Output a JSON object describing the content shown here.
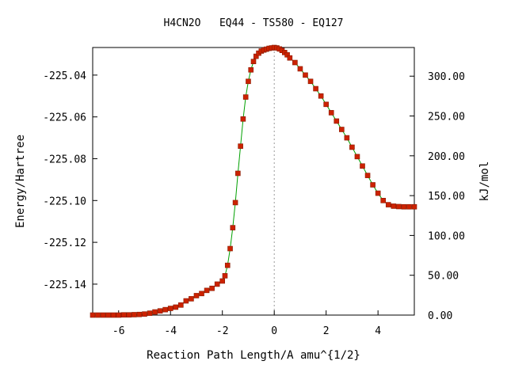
{
  "chart_data": {
    "type": "line",
    "title": "H4CN2O   EQ44 - TS580 - EQ127",
    "xlabel": "Reaction Path Length/A amu^{1/2}",
    "ylabel": "Energy/Hartree",
    "y2label": "kJ/mol",
    "xlim": [
      -7.0,
      5.4
    ],
    "ylim": [
      -225.1548,
      -225.0268
    ],
    "y2lim": [
      0,
      336
    ],
    "x_ticks": [
      "-6",
      "-4",
      "-2",
      "0",
      "2",
      "4"
    ],
    "y_ticks": [
      "-225.04",
      "-225.06",
      "-225.08",
      "-225.10",
      "-225.12",
      "-225.14"
    ],
    "y2_ticks": [
      "0.00",
      "50.00",
      "100.00",
      "150.00",
      "200.00",
      "250.00",
      "300.00"
    ],
    "ts_marker_x": 0,
    "grid": false,
    "line_color": "#00a000",
    "marker_color": "#cc2200",
    "series": [
      {
        "points": [
          [
            -7.0,
            -225.1548
          ],
          [
            -6.8,
            -225.1548
          ],
          [
            -6.6,
            -225.1548
          ],
          [
            -6.4,
            -225.1548
          ],
          [
            -6.2,
            -225.1548
          ],
          [
            -6.0,
            -225.1548
          ],
          [
            -5.8,
            -225.1547
          ],
          [
            -5.6,
            -225.1547
          ],
          [
            -5.4,
            -225.1546
          ],
          [
            -5.2,
            -225.1545
          ],
          [
            -5.0,
            -225.1543
          ],
          [
            -4.8,
            -225.1539
          ],
          [
            -4.6,
            -225.1533
          ],
          [
            -4.4,
            -225.1528
          ],
          [
            -4.2,
            -225.1522
          ],
          [
            -4.0,
            -225.1516
          ],
          [
            -3.8,
            -225.151
          ],
          [
            -3.6,
            -225.15
          ],
          [
            -3.4,
            -225.148
          ],
          [
            -3.2,
            -225.147
          ],
          [
            -3.0,
            -225.1455
          ],
          [
            -2.8,
            -225.1445
          ],
          [
            -2.6,
            -225.143
          ],
          [
            -2.4,
            -225.142
          ],
          [
            -2.2,
            -225.14
          ],
          [
            -2.0,
            -225.1385
          ],
          [
            -1.9,
            -225.136
          ],
          [
            -1.8,
            -225.131
          ],
          [
            -1.7,
            -225.123
          ],
          [
            -1.6,
            -225.113
          ],
          [
            -1.5,
            -225.101
          ],
          [
            -1.4,
            -225.087
          ],
          [
            -1.3,
            -225.074
          ],
          [
            -1.2,
            -225.061
          ],
          [
            -1.1,
            -225.0505
          ],
          [
            -1.0,
            -225.043
          ],
          [
            -0.9,
            -225.0375
          ],
          [
            -0.8,
            -225.0335
          ],
          [
            -0.7,
            -225.031
          ],
          [
            -0.6,
            -225.0295
          ],
          [
            -0.5,
            -225.0285
          ],
          [
            -0.4,
            -225.028
          ],
          [
            -0.3,
            -225.0276
          ],
          [
            -0.2,
            -225.0272
          ],
          [
            -0.1,
            -225.027
          ],
          [
            0.0,
            -225.0268
          ],
          [
            0.1,
            -225.027
          ],
          [
            0.2,
            -225.0275
          ],
          [
            0.3,
            -225.0282
          ],
          [
            0.4,
            -225.0292
          ],
          [
            0.5,
            -225.0303
          ],
          [
            0.6,
            -225.0318
          ],
          [
            0.8,
            -225.034
          ],
          [
            1.0,
            -225.037
          ],
          [
            1.2,
            -225.04
          ],
          [
            1.4,
            -225.043
          ],
          [
            1.6,
            -225.0465
          ],
          [
            1.8,
            -225.05
          ],
          [
            2.0,
            -225.054
          ],
          [
            2.2,
            -225.058
          ],
          [
            2.4,
            -225.062
          ],
          [
            2.6,
            -225.066
          ],
          [
            2.8,
            -225.07
          ],
          [
            3.0,
            -225.0745
          ],
          [
            3.2,
            -225.079
          ],
          [
            3.4,
            -225.0835
          ],
          [
            3.6,
            -225.088
          ],
          [
            3.8,
            -225.0925
          ],
          [
            4.0,
            -225.0965
          ],
          [
            4.2,
            -225.1
          ],
          [
            4.4,
            -225.102
          ],
          [
            4.6,
            -225.1027
          ],
          [
            4.8,
            -225.1029
          ],
          [
            5.0,
            -225.103
          ],
          [
            5.2,
            -225.103
          ],
          [
            5.4,
            -225.103
          ]
        ]
      }
    ]
  }
}
